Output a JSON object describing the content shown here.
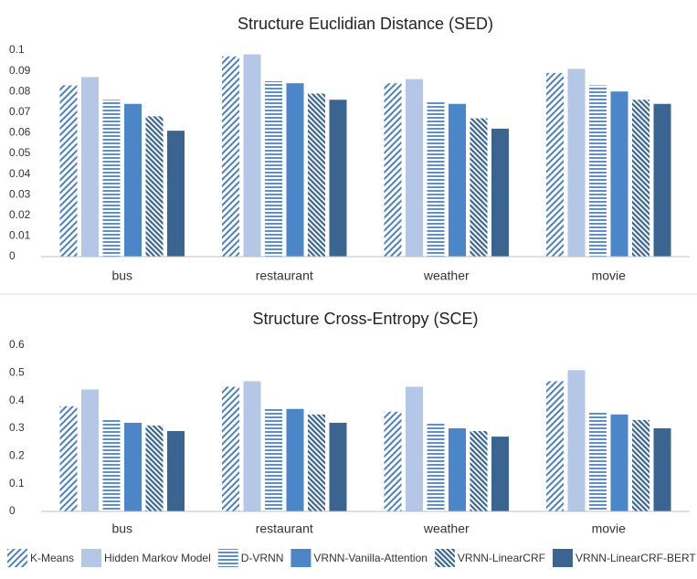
{
  "chart_data": [
    {
      "type": "bar",
      "title": "Structure Euclidian Distance (SED)",
      "categories": [
        "bus",
        "restaurant",
        "weather",
        "movie"
      ],
      "ylim": [
        0,
        0.1
      ],
      "yticks": [
        0,
        0.01,
        0.02,
        0.03,
        0.04,
        0.05,
        0.06,
        0.07,
        0.08,
        0.09,
        0.1
      ],
      "grid": false,
      "series": [
        {
          "name": "K-Means",
          "color": "#4a7fc0",
          "pattern": "diagonal",
          "values": [
            0.083,
            0.097,
            0.084,
            0.089
          ]
        },
        {
          "name": "Hidden Markov Model",
          "color": "#b4c7e7",
          "pattern": "solid",
          "values": [
            0.087,
            0.098,
            0.086,
            0.091
          ]
        },
        {
          "name": "D-VRNN",
          "color": "#5b8fcf",
          "pattern": "horizontal",
          "values": [
            0.076,
            0.085,
            0.075,
            0.083
          ]
        },
        {
          "name": "VRNN-Vanilla-Attention",
          "color": "#4a86c8",
          "pattern": "solid",
          "values": [
            0.074,
            0.084,
            0.074,
            0.08
          ]
        },
        {
          "name": "VRNN-LinearCRF",
          "color": "#3a6591",
          "pattern": "backdiagonal",
          "values": [
            0.068,
            0.079,
            0.067,
            0.076
          ]
        },
        {
          "name": "VRNN-LinearCRF-BERT",
          "color": "#3a6591",
          "pattern": "solid",
          "values": [
            0.061,
            0.076,
            0.062,
            0.074
          ]
        }
      ]
    },
    {
      "type": "bar",
      "title": "Structure Cross-Entropy (SCE)",
      "categories": [
        "bus",
        "restaurant",
        "weather",
        "movie"
      ],
      "ylim": [
        0,
        0.6
      ],
      "yticks": [
        0,
        0.1,
        0.2,
        0.3,
        0.4,
        0.5,
        0.6
      ],
      "grid": false,
      "series": [
        {
          "values": [
            0.38,
            0.45,
            0.36,
            0.47
          ]
        },
        {
          "values": [
            0.44,
            0.47,
            0.45,
            0.51
          ]
        },
        {
          "values": [
            0.33,
            0.37,
            0.32,
            0.36
          ]
        },
        {
          "values": [
            0.32,
            0.37,
            0.3,
            0.35
          ]
        },
        {
          "values": [
            0.31,
            0.35,
            0.29,
            0.33
          ]
        },
        {
          "values": [
            0.29,
            0.32,
            0.27,
            0.3
          ]
        }
      ]
    }
  ]
}
